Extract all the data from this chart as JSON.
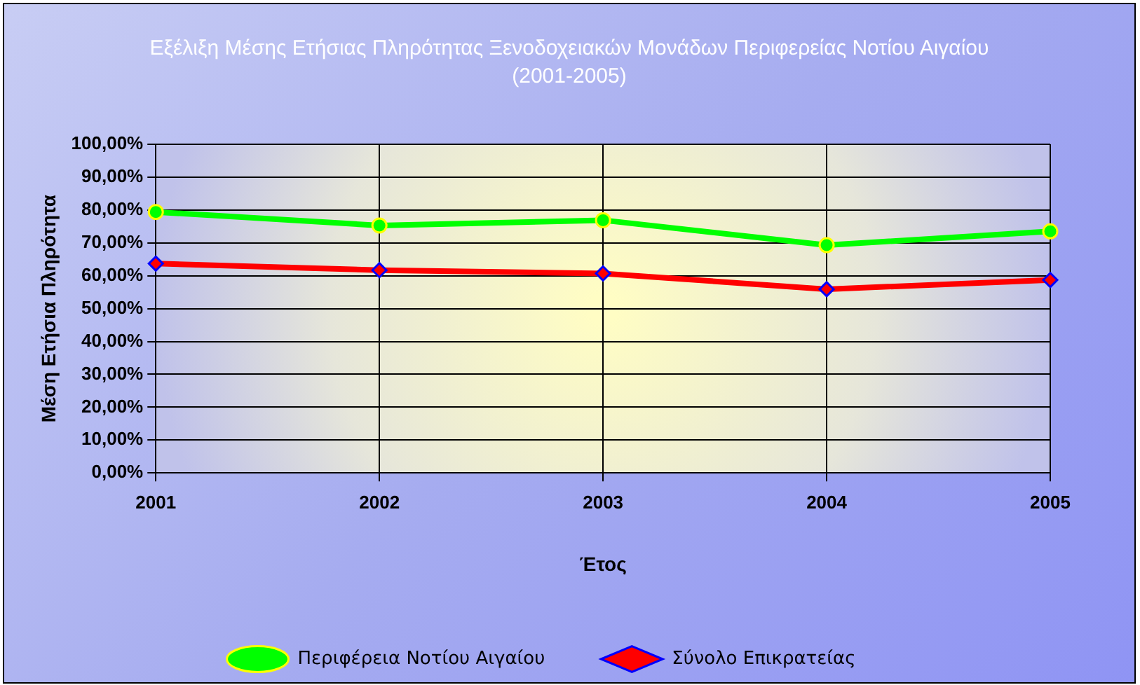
{
  "chart_data": {
    "type": "line",
    "title": "Εξέλιξη Μέσης Ετήσιας Πληρότητας Ξενοδοχειακών Μονάδων Περιφερείας Νοτίου Αιγαίου (2001-2005)",
    "xlabel": "Έτος",
    "ylabel": "Μέση Ετήσια Πληρότητα",
    "categories": [
      "2001",
      "2002",
      "2003",
      "2004",
      "2005"
    ],
    "series": [
      {
        "name": "Περιφέρεια Νοτίου Αιγαίου",
        "color": "#00ff00",
        "marker": "circle",
        "values": [
          79.4,
          75.3,
          76.9,
          69.3,
          73.5
        ]
      },
      {
        "name": "Σύνολο Επικρατείας",
        "color": "#ff0000",
        "marker": "diamond",
        "values": [
          63.7,
          61.7,
          60.7,
          55.9,
          58.7
        ]
      }
    ],
    "ylim": [
      0,
      100
    ],
    "yticks": [
      {
        "value": 0,
        "label": "0,00%"
      },
      {
        "value": 10,
        "label": "10,00%"
      },
      {
        "value": 20,
        "label": "20,00%"
      },
      {
        "value": 30,
        "label": "30,00%"
      },
      {
        "value": 40,
        "label": "40,00%"
      },
      {
        "value": 50,
        "label": "50,00%"
      },
      {
        "value": 60,
        "label": "60,00%"
      },
      {
        "value": 70,
        "label": "70,00%"
      },
      {
        "value": 80,
        "label": "80,00%"
      },
      {
        "value": 90,
        "label": "90,00%"
      },
      {
        "value": 100,
        "label": "100,00%"
      }
    ],
    "grid": true,
    "legend": "bottom"
  }
}
